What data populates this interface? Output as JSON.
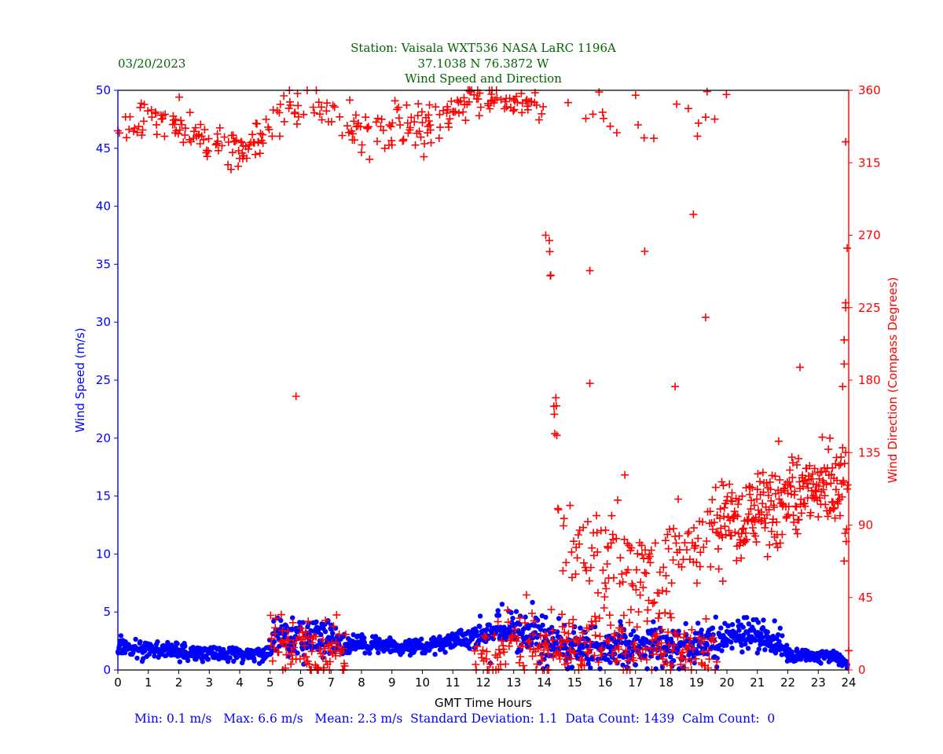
{
  "header": {
    "date": "03/20/2023",
    "station": "Station:  Vaisala WXT536  NASA LaRC 1196A",
    "coords": "37.1038 N 76.3872 W",
    "subtitle": "Wind Speed and Direction"
  },
  "stats": {
    "text": "Min: 0.1 m/s   Max: 6.6 m/s   Mean: 2.3 m/s  Standard Deviation: 1.1  Data Count: 1439  Calm Count:  0"
  },
  "chart_data": {
    "type": "scatter",
    "title": "Wind Speed and Direction",
    "xlabel": "GMT Time Hours",
    "ylabel": "Wind Speed (m/s)",
    "y2label": "Wind Direction (Compass Degrees)",
    "xlim": [
      0,
      24
    ],
    "ylim": [
      0,
      50
    ],
    "y2lim": [
      0,
      360
    ],
    "xticks": [
      "0",
      "1",
      "2",
      "3",
      "4",
      "5",
      "6",
      "7",
      "8",
      "9",
      "10",
      "11",
      "12",
      "13",
      "14",
      "15",
      "16",
      "17",
      "18",
      "19",
      "20",
      "21",
      "22",
      "23",
      "24"
    ],
    "yticks": [
      "0",
      "5",
      "10",
      "15",
      "20",
      "25",
      "30",
      "35",
      "40",
      "45",
      "50"
    ],
    "y2ticks": [
      "0",
      "45",
      "90",
      "135",
      "180",
      "225",
      "270",
      "315",
      "360"
    ],
    "grid": false,
    "colors": {
      "speed": "#0000ff",
      "direction": "#ff0000",
      "title": "#006400"
    },
    "series": [
      {
        "name": "Wind Speed",
        "axis": "left",
        "marker": "circle",
        "note": "trend (hour, mean m/s, spread m/s) — 1439 one-minute samples",
        "trend": [
          [
            0,
            2.0,
            0.5
          ],
          [
            1,
            1.9,
            0.5
          ],
          [
            2,
            1.6,
            0.5
          ],
          [
            3,
            1.4,
            0.4
          ],
          [
            4,
            1.4,
            0.4
          ],
          [
            4.9,
            1.4,
            0.4
          ],
          [
            5.2,
            2.8,
            1.0
          ],
          [
            6,
            2.9,
            1.1
          ],
          [
            6.8,
            2.9,
            1.1
          ],
          [
            7.5,
            2.0,
            0.5
          ],
          [
            8,
            2.3,
            0.5
          ],
          [
            9,
            2.0,
            0.4
          ],
          [
            10,
            2.0,
            0.4
          ],
          [
            11,
            2.5,
            0.5
          ],
          [
            12,
            3.0,
            0.7
          ],
          [
            12.5,
            3.6,
            1.0
          ],
          [
            13,
            3.5,
            1.1
          ],
          [
            14,
            2.5,
            1.3
          ],
          [
            15,
            2.0,
            1.2
          ],
          [
            16,
            2.0,
            1.2
          ],
          [
            17,
            2.0,
            1.1
          ],
          [
            18,
            2.0,
            1.1
          ],
          [
            19,
            2.0,
            1.1
          ],
          [
            20,
            3.0,
            0.9
          ],
          [
            21,
            3.0,
            0.8
          ],
          [
            21.8,
            2.0,
            0.7
          ],
          [
            22,
            1.2,
            0.4
          ],
          [
            23,
            1.3,
            0.3
          ],
          [
            23.6,
            1.2,
            0.3
          ],
          [
            24,
            0.3,
            0.2
          ]
        ],
        "min": 0.1,
        "max": 6.6,
        "count": 1439
      },
      {
        "name": "Wind Direction",
        "axis": "right",
        "marker": "plus",
        "note": "trend (hour, mean deg, spread deg)",
        "trend": [
          [
            0,
            338,
            8
          ],
          [
            1,
            342,
            7
          ],
          [
            2,
            341,
            6
          ],
          [
            2.8,
            332,
            6
          ],
          [
            3.5,
            325,
            5
          ],
          [
            4.3,
            322,
            6
          ],
          [
            4.9,
            332,
            6
          ],
          [
            5.3,
            348,
            6
          ],
          [
            6,
            352,
            5
          ],
          [
            7,
            346,
            5
          ],
          [
            7.6,
            335,
            9
          ],
          [
            8.5,
            336,
            8
          ],
          [
            9.5,
            338,
            8
          ],
          [
            10.3,
            336,
            7
          ],
          [
            11,
            350,
            5
          ],
          [
            12,
            354,
            4
          ],
          [
            12.8,
            352,
            5
          ],
          [
            13.5,
            353,
            5
          ],
          [
            14,
            350,
            8
          ],
          [
            14.5,
            80,
            15
          ],
          [
            15,
            73,
            15
          ],
          [
            16,
            72,
            15
          ],
          [
            17,
            65,
            15
          ],
          [
            18,
            60,
            15
          ],
          [
            19,
            80,
            12
          ],
          [
            20,
            90,
            12
          ],
          [
            21,
            100,
            12
          ],
          [
            22,
            105,
            12
          ],
          [
            23,
            112,
            10
          ],
          [
            23.8,
            115,
            15
          ]
        ],
        "low_cluster_trend": [
          [
            5,
            15,
            10
          ],
          [
            6,
            15,
            10
          ],
          [
            7,
            12,
            10
          ],
          [
            12,
            10,
            8
          ],
          [
            13,
            18,
            10
          ],
          [
            14,
            15,
            10
          ],
          [
            15,
            15,
            10
          ],
          [
            16,
            15,
            10
          ],
          [
            17,
            15,
            10
          ],
          [
            18,
            15,
            10
          ],
          [
            19,
            12,
            10
          ]
        ],
        "outliers": [
          [
            5.85,
            170
          ],
          [
            14.05,
            270
          ],
          [
            15.5,
            248
          ],
          [
            15.5,
            178
          ],
          [
            17.3,
            260
          ],
          [
            18.3,
            176
          ],
          [
            18.9,
            283
          ],
          [
            19.3,
            219
          ],
          [
            22.4,
            188
          ],
          [
            23.9,
            328
          ],
          [
            23.95,
            262
          ],
          [
            23.9,
            228
          ],
          [
            23.9,
            225
          ],
          [
            23.85,
            205
          ],
          [
            23.85,
            190
          ],
          [
            23.8,
            176
          ],
          [
            24.0,
            12
          ]
        ],
        "count": 1439
      }
    ]
  }
}
